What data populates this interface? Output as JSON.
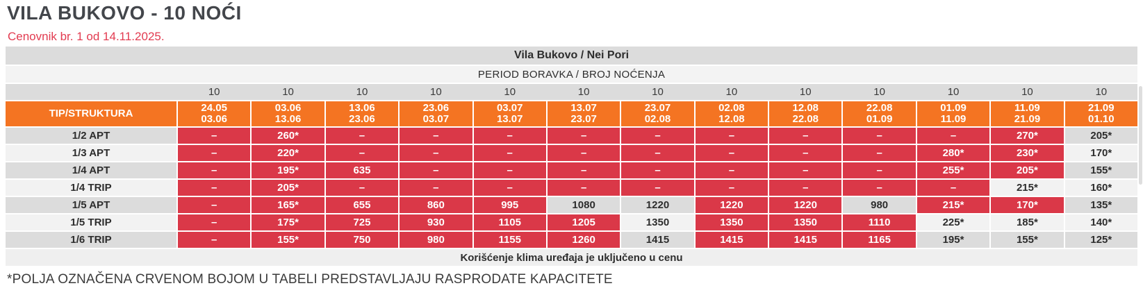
{
  "page": {
    "title": "VILA BUKOVO - 10 NOĆI",
    "subtitle": "Cenovnik br. 1 od 14.11.2025.",
    "footnote": "*POLJA OZNAČENA CRVENOM BOJOM U TABELI PREDSTAVLJAJU RASPRODATE KAPACITETE"
  },
  "colors": {
    "orange_header": "#F47422",
    "sold_out_red": "#DA3848",
    "row_stripe_dark": "#DCDCDC",
    "row_stripe_light": "#F2F2F2",
    "subtitle_red": "#E23B50"
  },
  "table": {
    "merged_header_1": "Vila Bukovo / Nei Pori",
    "merged_header_2": "PERIOD BORAVKA / BROJ NOĆENJA",
    "corner_label": "TIP/STRUKTURA",
    "nights_label": "10",
    "columns": [
      {
        "nights": "10",
        "from": "24.05",
        "to": "03.06"
      },
      {
        "nights": "10",
        "from": "03.06",
        "to": "13.06"
      },
      {
        "nights": "10",
        "from": "13.06",
        "to": "23.06"
      },
      {
        "nights": "10",
        "from": "23.06",
        "to": "03.07"
      },
      {
        "nights": "10",
        "from": "03.07",
        "to": "13.07"
      },
      {
        "nights": "10",
        "from": "13.07",
        "to": "23.07"
      },
      {
        "nights": "10",
        "from": "23.07",
        "to": "02.08"
      },
      {
        "nights": "10",
        "from": "02.08",
        "to": "12.08"
      },
      {
        "nights": "10",
        "from": "12.08",
        "to": "22.08"
      },
      {
        "nights": "10",
        "from": "22.08",
        "to": "01.09"
      },
      {
        "nights": "10",
        "from": "01.09",
        "to": "11.09"
      },
      {
        "nights": "10",
        "from": "11.09",
        "to": "21.09"
      },
      {
        "nights": "10",
        "from": "21.09",
        "to": "01.10"
      }
    ],
    "rows": [
      {
        "label": "1/2 APT",
        "cells": [
          {
            "text": "–",
            "sold": true
          },
          {
            "text": "260*",
            "sold": true
          },
          {
            "text": "–",
            "sold": true
          },
          {
            "text": "–",
            "sold": true
          },
          {
            "text": "–",
            "sold": true
          },
          {
            "text": "–",
            "sold": true
          },
          {
            "text": "–",
            "sold": true
          },
          {
            "text": "–",
            "sold": true
          },
          {
            "text": "–",
            "sold": true
          },
          {
            "text": "–",
            "sold": true
          },
          {
            "text": "–",
            "sold": true
          },
          {
            "text": "270*",
            "sold": true
          },
          {
            "text": "205*",
            "sold": false
          }
        ]
      },
      {
        "label": "1/3 APT",
        "cells": [
          {
            "text": "–",
            "sold": true
          },
          {
            "text": "220*",
            "sold": true
          },
          {
            "text": "–",
            "sold": true
          },
          {
            "text": "–",
            "sold": true
          },
          {
            "text": "–",
            "sold": true
          },
          {
            "text": "–",
            "sold": true
          },
          {
            "text": "–",
            "sold": true
          },
          {
            "text": "–",
            "sold": true
          },
          {
            "text": "–",
            "sold": true
          },
          {
            "text": "–",
            "sold": true
          },
          {
            "text": "280*",
            "sold": true
          },
          {
            "text": "230*",
            "sold": true
          },
          {
            "text": "170*",
            "sold": false
          }
        ]
      },
      {
        "label": "1/4 APT",
        "cells": [
          {
            "text": "–",
            "sold": true
          },
          {
            "text": "195*",
            "sold": true
          },
          {
            "text": "635",
            "sold": true
          },
          {
            "text": "–",
            "sold": true
          },
          {
            "text": "–",
            "sold": true
          },
          {
            "text": "–",
            "sold": true
          },
          {
            "text": "–",
            "sold": true
          },
          {
            "text": "–",
            "sold": true
          },
          {
            "text": "–",
            "sold": true
          },
          {
            "text": "–",
            "sold": true
          },
          {
            "text": "255*",
            "sold": true
          },
          {
            "text": "205*",
            "sold": true
          },
          {
            "text": "155*",
            "sold": false
          }
        ]
      },
      {
        "label": "1/4 TRIP",
        "cells": [
          {
            "text": "–",
            "sold": true
          },
          {
            "text": "205*",
            "sold": true
          },
          {
            "text": "–",
            "sold": true
          },
          {
            "text": "–",
            "sold": true
          },
          {
            "text": "–",
            "sold": true
          },
          {
            "text": "–",
            "sold": true
          },
          {
            "text": "–",
            "sold": true
          },
          {
            "text": "–",
            "sold": true
          },
          {
            "text": "–",
            "sold": true
          },
          {
            "text": "–",
            "sold": true
          },
          {
            "text": "–",
            "sold": true
          },
          {
            "text": "215*",
            "sold": false
          },
          {
            "text": "160*",
            "sold": false
          }
        ]
      },
      {
        "label": "1/5 APT",
        "cells": [
          {
            "text": "–",
            "sold": true
          },
          {
            "text": "165*",
            "sold": true
          },
          {
            "text": "655",
            "sold": true
          },
          {
            "text": "860",
            "sold": true
          },
          {
            "text": "995",
            "sold": true
          },
          {
            "text": "1080",
            "sold": false
          },
          {
            "text": "1220",
            "sold": false
          },
          {
            "text": "1220",
            "sold": true
          },
          {
            "text": "1220",
            "sold": true
          },
          {
            "text": "980",
            "sold": false
          },
          {
            "text": "215*",
            "sold": true
          },
          {
            "text": "170*",
            "sold": true
          },
          {
            "text": "135*",
            "sold": false
          }
        ]
      },
      {
        "label": "1/5 TRIP",
        "cells": [
          {
            "text": "–",
            "sold": true
          },
          {
            "text": "175*",
            "sold": true
          },
          {
            "text": "725",
            "sold": true
          },
          {
            "text": "930",
            "sold": true
          },
          {
            "text": "1105",
            "sold": true
          },
          {
            "text": "1205",
            "sold": true
          },
          {
            "text": "1350",
            "sold": false
          },
          {
            "text": "1350",
            "sold": true
          },
          {
            "text": "1350",
            "sold": true
          },
          {
            "text": "1110",
            "sold": true
          },
          {
            "text": "225*",
            "sold": false
          },
          {
            "text": "185*",
            "sold": false
          },
          {
            "text": "140*",
            "sold": false
          }
        ]
      },
      {
        "label": "1/6 TRIP",
        "cells": [
          {
            "text": "–",
            "sold": true
          },
          {
            "text": "155*",
            "sold": true
          },
          {
            "text": "750",
            "sold": true
          },
          {
            "text": "980",
            "sold": true
          },
          {
            "text": "1155",
            "sold": true
          },
          {
            "text": "1260",
            "sold": true
          },
          {
            "text": "1415",
            "sold": false
          },
          {
            "text": "1415",
            "sold": true
          },
          {
            "text": "1415",
            "sold": true
          },
          {
            "text": "1165",
            "sold": true
          },
          {
            "text": "195*",
            "sold": false
          },
          {
            "text": "155*",
            "sold": false
          },
          {
            "text": "125*",
            "sold": false
          }
        ]
      }
    ],
    "footer_note": "Korišćenje klima uređaja je uključeno u cenu"
  }
}
